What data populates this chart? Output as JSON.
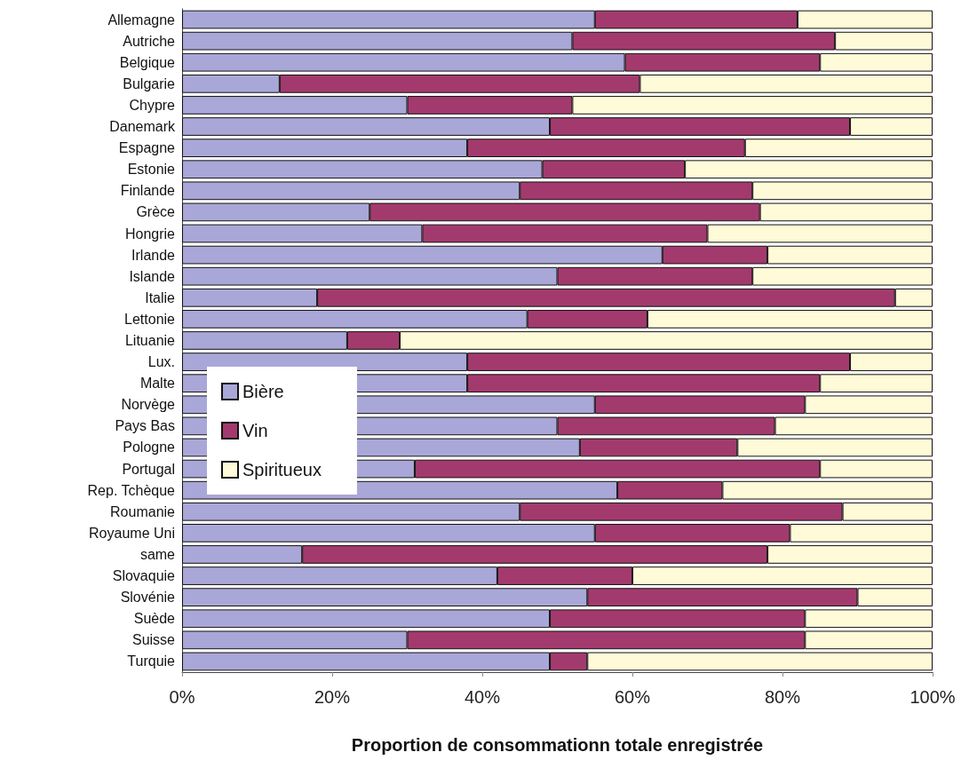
{
  "chart_data": {
    "type": "bar",
    "orientation": "horizontal",
    "stacked": true,
    "xlabel": "Proportion de consommationn totale enregistrée",
    "categories": [
      "Allemagne",
      "Autriche",
      "Belgique",
      "Bulgarie",
      "Chypre",
      "Danemark",
      "Espagne",
      "Estonie",
      "Finlande",
      "Grèce",
      "Hongrie",
      "Irlande",
      "Islande",
      "Italie",
      "Lettonie",
      "Lituanie",
      "Lux.",
      "Malte",
      "Norvège",
      "Pays Bas",
      "Pologne",
      "Portugal",
      "Rep. Tchèque",
      "Roumanie",
      "Royaume Uni",
      "same",
      "Slovaquie",
      "Slovénie",
      "Suède",
      "Suisse",
      "Turquie"
    ],
    "series": [
      {
        "name": "Bière",
        "color": "#a9a7d8",
        "values": [
          55,
          52,
          59,
          13,
          30,
          49,
          38,
          48,
          45,
          25,
          32,
          64,
          50,
          18,
          46,
          22,
          38,
          38,
          55,
          50,
          53,
          31,
          58,
          45,
          55,
          16,
          42,
          54,
          49,
          30,
          49
        ]
      },
      {
        "name": "Vin",
        "color": "#a33a6e",
        "values": [
          27,
          35,
          26,
          48,
          22,
          40,
          37,
          19,
          31,
          52,
          38,
          14,
          26,
          77,
          16,
          7,
          51,
          47,
          28,
          29,
          21,
          54,
          14,
          43,
          26,
          62,
          18,
          36,
          34,
          53,
          5
        ]
      },
      {
        "name": "Spiritueux",
        "color": "#fffbd8",
        "values": [
          18,
          13,
          15,
          39,
          48,
          11,
          25,
          33,
          24,
          23,
          30,
          22,
          24,
          5,
          38,
          71,
          11,
          15,
          17,
          21,
          26,
          15,
          28,
          12,
          19,
          22,
          40,
          10,
          17,
          17,
          46
        ]
      }
    ],
    "xlim": [
      0,
      100
    ],
    "xticks": [
      {
        "value": 0,
        "label": "0%"
      },
      {
        "value": 20,
        "label": "20%"
      },
      {
        "value": 40,
        "label": "40%"
      },
      {
        "value": 60,
        "label": "60%"
      },
      {
        "value": 80,
        "label": "80%"
      },
      {
        "value": 100,
        "label": "100%"
      }
    ],
    "grid": false,
    "legend": "left"
  }
}
